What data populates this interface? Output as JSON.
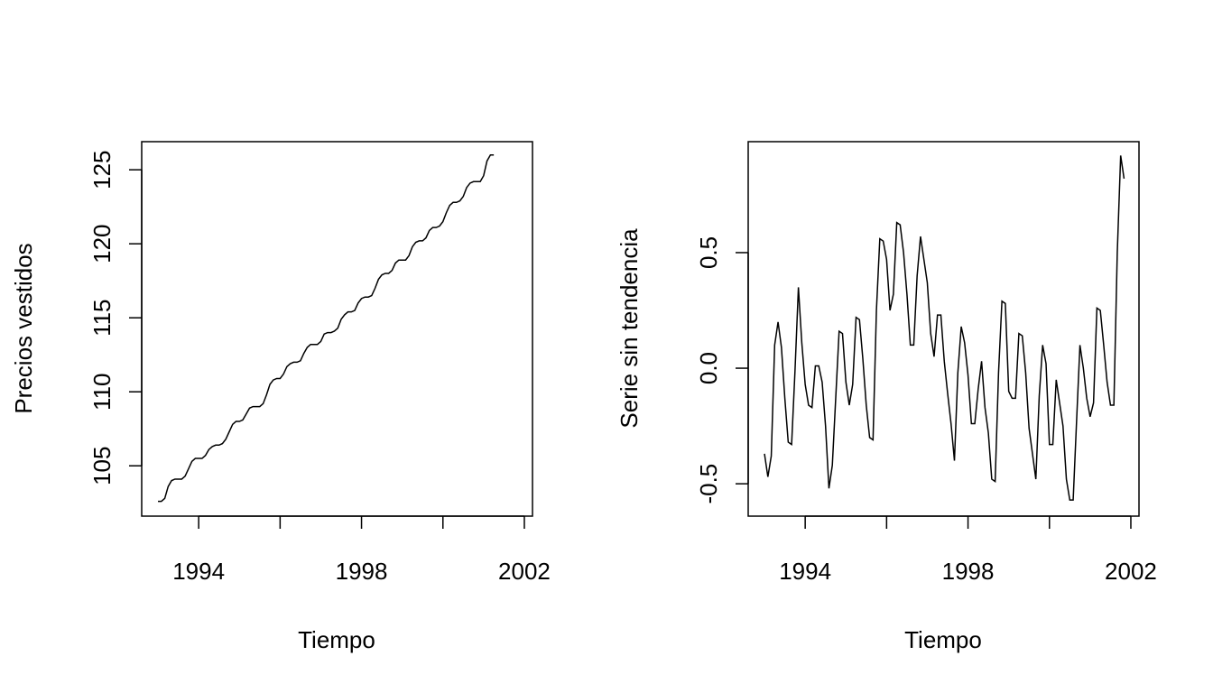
{
  "chart_data": [
    {
      "type": "line",
      "title": "",
      "xlabel": "Tiempo",
      "ylabel": "Precios vestidos",
      "xlim": [
        1992.6,
        2002.2
      ],
      "ylim": [
        101.6,
        126.9
      ],
      "x_ticks": [
        1994,
        1996,
        1998,
        2000,
        2002
      ],
      "x_tick_labels": [
        "1994",
        "",
        "1998",
        "",
        "2002"
      ],
      "y_ticks": [
        105,
        110,
        115,
        120,
        125
      ],
      "y_tick_labels": [
        "105",
        "110",
        "115",
        "120",
        "125"
      ],
      "x_start": 1993.0,
      "x_step": 0.08333,
      "values": [
        102.6,
        102.6,
        102.8,
        103.6,
        104.0,
        104.1,
        104.1,
        104.1,
        104.3,
        104.8,
        105.3,
        105.5,
        105.5,
        105.5,
        105.7,
        106.1,
        106.3,
        106.4,
        106.4,
        106.5,
        106.8,
        107.3,
        107.8,
        108.0,
        108.0,
        108.1,
        108.5,
        108.9,
        109.0,
        109.0,
        109.0,
        109.2,
        109.8,
        110.5,
        110.8,
        110.9,
        110.9,
        111.2,
        111.7,
        111.9,
        112.0,
        112.0,
        112.1,
        112.6,
        113.0,
        113.2,
        113.2,
        113.2,
        113.4,
        113.9,
        114.0,
        114.0,
        114.1,
        114.3,
        114.9,
        115.2,
        115.4,
        115.4,
        115.5,
        116.0,
        116.3,
        116.4,
        116.4,
        116.5,
        117.0,
        117.6,
        117.9,
        118.0,
        118.0,
        118.2,
        118.7,
        118.9,
        118.9,
        118.9,
        119.2,
        119.8,
        120.1,
        120.2,
        120.2,
        120.4,
        120.9,
        121.1,
        121.1,
        121.2,
        121.5,
        122.1,
        122.6,
        122.8,
        122.8,
        122.9,
        123.2,
        123.8,
        124.1,
        124.2,
        124.2,
        124.2,
        124.6,
        125.6,
        126.0,
        126.0
      ]
    },
    {
      "type": "line",
      "title": "",
      "xlabel": "Tiempo",
      "ylabel": "Serie sin tendencia",
      "xlim": [
        1992.6,
        2002.2
      ],
      "ylim": [
        -0.64,
        0.98
      ],
      "x_ticks": [
        1994,
        1996,
        1998,
        2000,
        2002
      ],
      "x_tick_labels": [
        "1994",
        "",
        "1998",
        "",
        "2002"
      ],
      "y_ticks": [
        -0.5,
        0.0,
        0.5
      ],
      "y_tick_labels": [
        "-0.5",
        "0.0",
        "0.5"
      ],
      "x_start": 1993.0,
      "x_step": 0.08333,
      "values": [
        -0.37,
        -0.47,
        -0.38,
        0.1,
        0.2,
        0.09,
        -0.13,
        -0.32,
        -0.33,
        -0.01,
        0.35,
        0.11,
        -0.07,
        -0.16,
        -0.17,
        0.01,
        0.01,
        -0.06,
        -0.25,
        -0.52,
        -0.42,
        -0.13,
        0.16,
        0.15,
        -0.06,
        -0.16,
        -0.07,
        0.22,
        0.21,
        0.04,
        -0.16,
        -0.3,
        -0.31,
        0.25,
        0.56,
        0.55,
        0.47,
        0.25,
        0.32,
        0.63,
        0.62,
        0.5,
        0.32,
        0.1,
        0.1,
        0.4,
        0.57,
        0.47,
        0.37,
        0.15,
        0.05,
        0.23,
        0.23,
        0.03,
        -0.11,
        -0.24,
        -0.4,
        -0.02,
        0.18,
        0.11,
        -0.03,
        -0.24,
        -0.24,
        -0.09,
        0.03,
        -0.17,
        -0.28,
        -0.48,
        -0.49,
        -0.02,
        0.29,
        0.28,
        -0.1,
        -0.13,
        -0.13,
        0.15,
        0.14,
        -0.02,
        -0.26,
        -0.37,
        -0.48,
        -0.12,
        0.1,
        0.02,
        -0.33,
        -0.33,
        -0.05,
        -0.15,
        -0.25,
        -0.48,
        -0.57,
        -0.57,
        -0.23,
        0.1,
        0.0,
        -0.13,
        -0.21,
        -0.15,
        0.26,
        0.25,
        0.1,
        -0.06,
        -0.16,
        -0.16,
        0.5,
        0.92,
        0.82
      ]
    }
  ]
}
